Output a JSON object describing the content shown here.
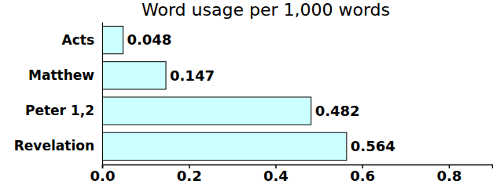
{
  "chart_data": {
    "type": "bar",
    "title": "Word usage per 1,000 words",
    "orientation": "horizontal",
    "categories": [
      "Acts",
      "Matthew",
      "Peter 1,2",
      "Revelation"
    ],
    "values": [
      0.048,
      0.147,
      0.482,
      0.564
    ],
    "color": "#ccffff",
    "xlim": [
      0,
      0.9
    ],
    "xticks": [
      {
        "value": 0,
        "label": "0.0"
      },
      0.2,
      0.4,
      0.6,
      0.8
    ],
    "data_labels": true,
    "grid": false
  }
}
